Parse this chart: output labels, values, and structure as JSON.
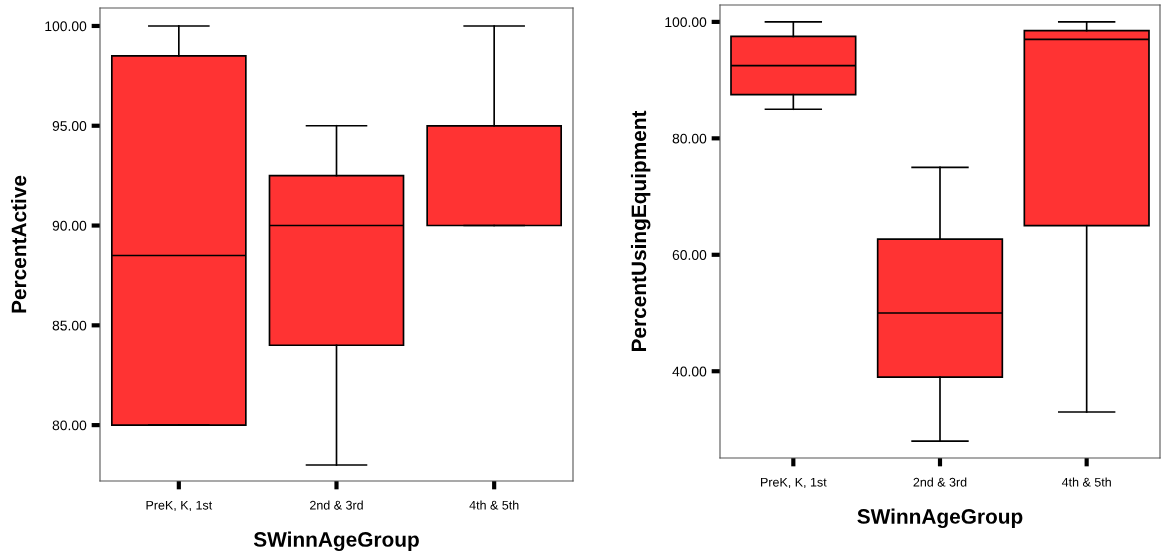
{
  "chart_data": [
    {
      "type": "box",
      "xlabel": "SWinnAgeGroup",
      "ylabel": "PercentActive",
      "categories": [
        "PreK, K, 1st",
        "2nd & 3rd",
        "4th & 5th"
      ],
      "color": "#ff3333",
      "ylim": [
        77.2,
        100.9
      ],
      "yticks": [
        {
          "value": 80,
          "label": "80.00"
        },
        {
          "value": 85,
          "label": "85.00"
        },
        {
          "value": 90,
          "label": "90.00"
        },
        {
          "value": 95,
          "label": "95.00"
        },
        {
          "value": 100,
          "label": "100.00"
        }
      ],
      "grid": false,
      "boxes": [
        {
          "low": 80,
          "q1": 80,
          "median": 88.5,
          "q3": 98.5,
          "high": 100
        },
        {
          "low": 78,
          "q1": 84,
          "median": 90,
          "q3": 92.5,
          "high": 95
        },
        {
          "low": 90,
          "q1": 90,
          "median": 95,
          "q3": 95,
          "high": 100
        }
      ]
    },
    {
      "type": "box",
      "xlabel": "SWinnAgeGroup",
      "ylabel": "PercentUsingEquipment",
      "categories": [
        "PreK, K, 1st",
        "2nd & 3rd",
        "4th & 5th"
      ],
      "color": "#ff3333",
      "ylim": [
        25.1,
        102.9
      ],
      "yticks": [
        {
          "value": 40,
          "label": "40.00"
        },
        {
          "value": 60,
          "label": "60.00"
        },
        {
          "value": 80,
          "label": "80.00"
        },
        {
          "value": 100,
          "label": "100.00"
        }
      ],
      "grid": false,
      "boxes": [
        {
          "low": 85,
          "q1": 87.5,
          "median": 92.5,
          "q3": 97.5,
          "high": 100
        },
        {
          "low": 28,
          "q1": 39,
          "median": 50,
          "q3": 62.7,
          "high": 75
        },
        {
          "low": 33,
          "q1": 65,
          "median": 97,
          "q3": 98.5,
          "high": 100
        }
      ]
    }
  ]
}
